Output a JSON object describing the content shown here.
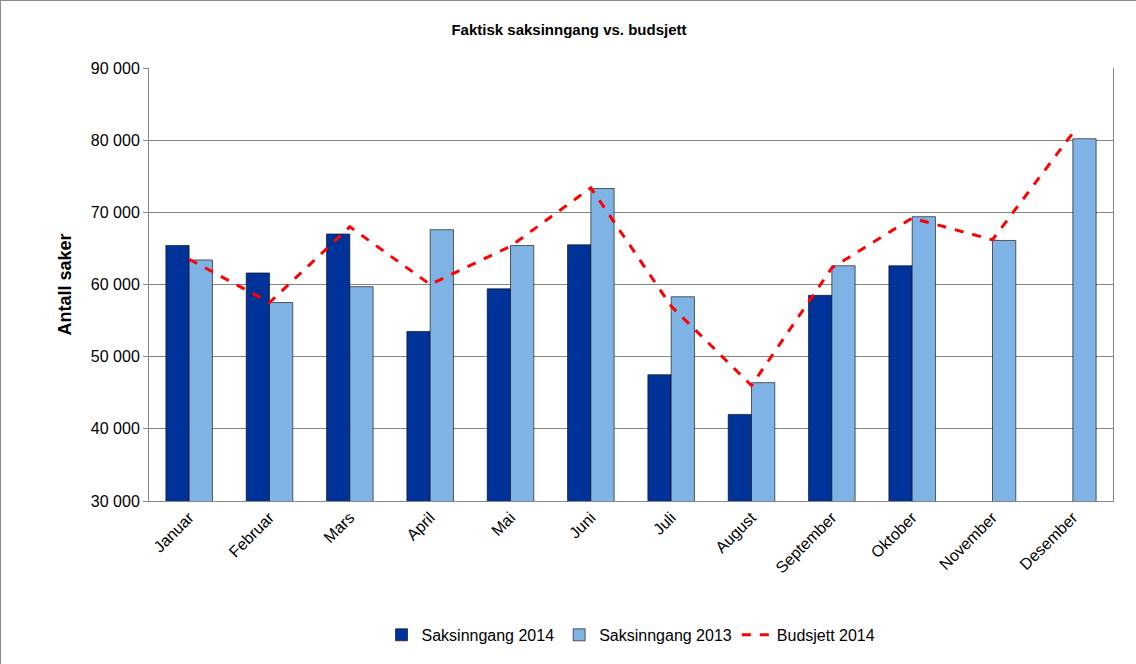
{
  "chart_data": {
    "type": "bar",
    "title": "Faktisk saksinngang vs. budsjett",
    "y_label": "Antall saker",
    "categories": [
      "Januar",
      "Februar",
      "Mars",
      "April",
      "Mai",
      "Juni",
      "Juli",
      "August",
      "September",
      "Oktober",
      "November",
      "Desember"
    ],
    "series": [
      {
        "name": "Saksinngang 2014",
        "color": "#003399",
        "type": "bar",
        "values": [
          65400,
          61600,
          67000,
          53500,
          59400,
          65500,
          47500,
          42000,
          58500,
          62600,
          null,
          null
        ]
      },
      {
        "name": "Saksinngang 2013",
        "color": "#7fb2e5",
        "type": "bar",
        "values": [
          63400,
          57500,
          59700,
          67600,
          65400,
          73300,
          58300,
          46400,
          62600,
          69400,
          66100,
          80200
        ]
      },
      {
        "name": "Budsjett 2014",
        "color": "#ff0000",
        "type": "line",
        "line_style": "dashed",
        "values": [
          63500,
          57500,
          68000,
          60000,
          65300,
          73400,
          57000,
          46000,
          62300,
          69200,
          66200,
          81000
        ]
      }
    ],
    "ylim": [
      30000,
      90000
    ],
    "yticks": [
      {
        "value": 30000,
        "label": "30 000"
      },
      {
        "value": 40000,
        "label": "40 000"
      },
      {
        "value": 50000,
        "label": "50 000"
      },
      {
        "value": 60000,
        "label": "60 000"
      },
      {
        "value": 70000,
        "label": "70 000"
      },
      {
        "value": 80000,
        "label": "80 000"
      },
      {
        "value": 90000,
        "label": "90 000"
      }
    ],
    "grid": true,
    "legend": "bottom"
  }
}
